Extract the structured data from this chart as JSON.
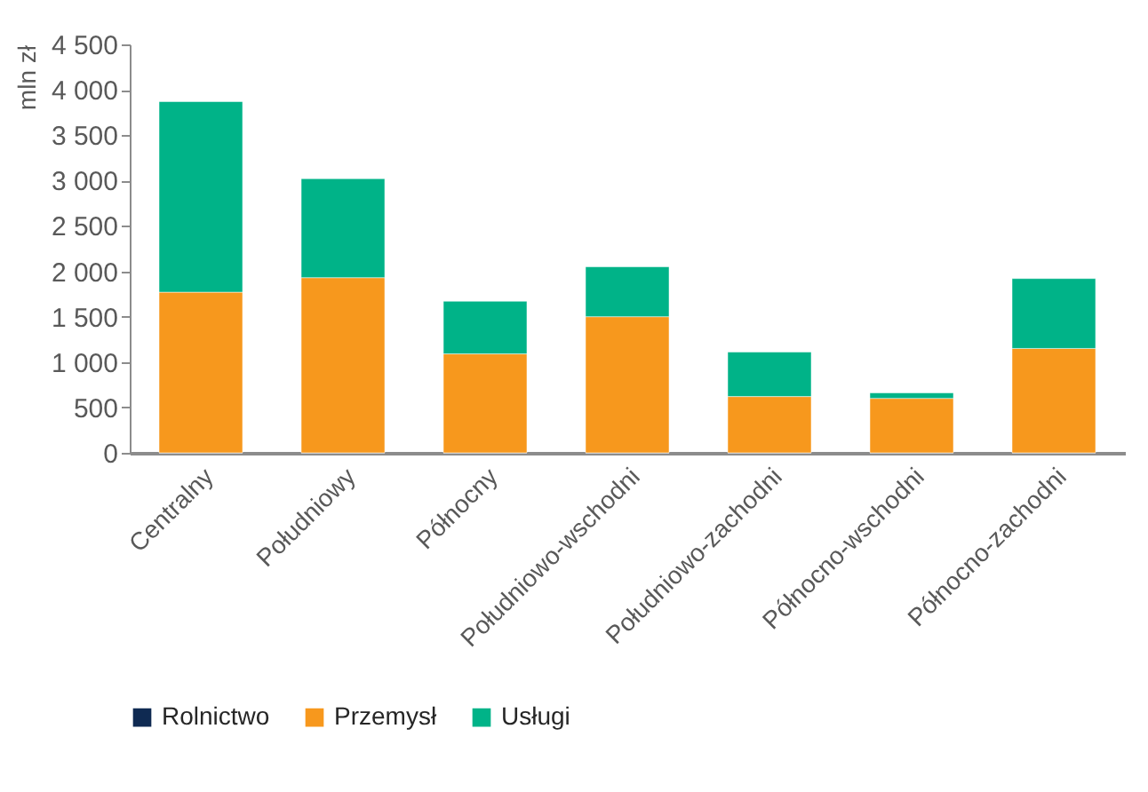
{
  "chart_data": {
    "type": "bar",
    "stacked": true,
    "ylabel": "mln zł",
    "categories": [
      "Centralny",
      "Południowy",
      "Północny",
      "Południowo-wschodni",
      "Południowo-zachodni",
      "Północno-wschodni",
      "Północno-zachodni"
    ],
    "series": [
      {
        "name": "Rolnictwo",
        "color": "#0f2a52",
        "values": [
          0,
          0,
          0,
          0,
          0,
          0,
          0
        ]
      },
      {
        "name": "Przemysł",
        "color": "#f7981d",
        "values": [
          1770,
          1930,
          1090,
          1500,
          620,
          600,
          1150
        ]
      },
      {
        "name": "Usługi",
        "color": "#00b388",
        "values": [
          2100,
          1090,
          580,
          550,
          490,
          60,
          770
        ]
      }
    ],
    "ylim": [
      0,
      4500
    ],
    "yticks": [
      {
        "value": 0,
        "label": "0"
      },
      {
        "value": 500,
        "label": "500"
      },
      {
        "value": 1000,
        "label": "1 000"
      },
      {
        "value": 1500,
        "label": "1 500"
      },
      {
        "value": 2000,
        "label": "2 000"
      },
      {
        "value": 2500,
        "label": "2 500"
      },
      {
        "value": 3000,
        "label": "3 000"
      },
      {
        "value": 3500,
        "label": "3 500"
      },
      {
        "value": 4000,
        "label": "4 000"
      },
      {
        "value": 4500,
        "label": "4 500"
      }
    ],
    "grid": false,
    "legend": "bottom"
  }
}
